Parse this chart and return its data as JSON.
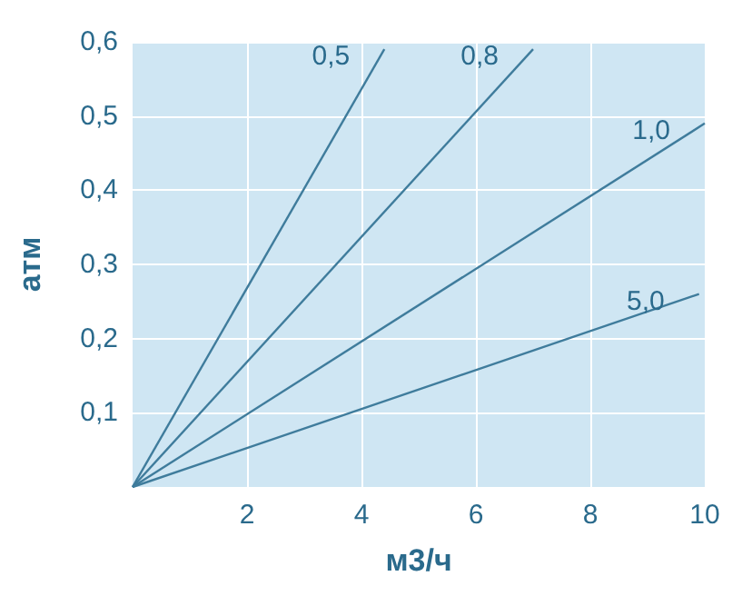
{
  "chart_data": {
    "type": "line",
    "xlabel": "м3/ч",
    "ylabel": "атм",
    "xlim": [
      0,
      10
    ],
    "ylim": [
      0,
      0.6
    ],
    "xticks": [
      2,
      4,
      6,
      8,
      10
    ],
    "yticks": [
      {
        "value": 0.1,
        "label": "0,1"
      },
      {
        "value": 0.2,
        "label": "0,2"
      },
      {
        "value": 0.3,
        "label": "0,3"
      },
      {
        "value": 0.4,
        "label": "0,4"
      },
      {
        "value": 0.5,
        "label": "0,5"
      },
      {
        "value": 0.6,
        "label": "0,6"
      }
    ],
    "grid": true,
    "marker": "none",
    "line_style": "solid",
    "legend": false,
    "series": [
      {
        "name": "0,5",
        "color": "#3f7c9c",
        "x": [
          0,
          4.4
        ],
        "values": [
          0,
          0.59
        ]
      },
      {
        "name": "0,8",
        "color": "#3f7c9c",
        "x": [
          0,
          7.0
        ],
        "values": [
          0,
          0.59
        ]
      },
      {
        "name": "1,0",
        "color": "#3f7c9c",
        "x": [
          0,
          10
        ],
        "values": [
          0,
          0.49
        ]
      },
      {
        "name": "5,0",
        "color": "#3f7c9c",
        "x": [
          0,
          9.9
        ],
        "values": [
          0,
          0.26
        ]
      }
    ]
  }
}
